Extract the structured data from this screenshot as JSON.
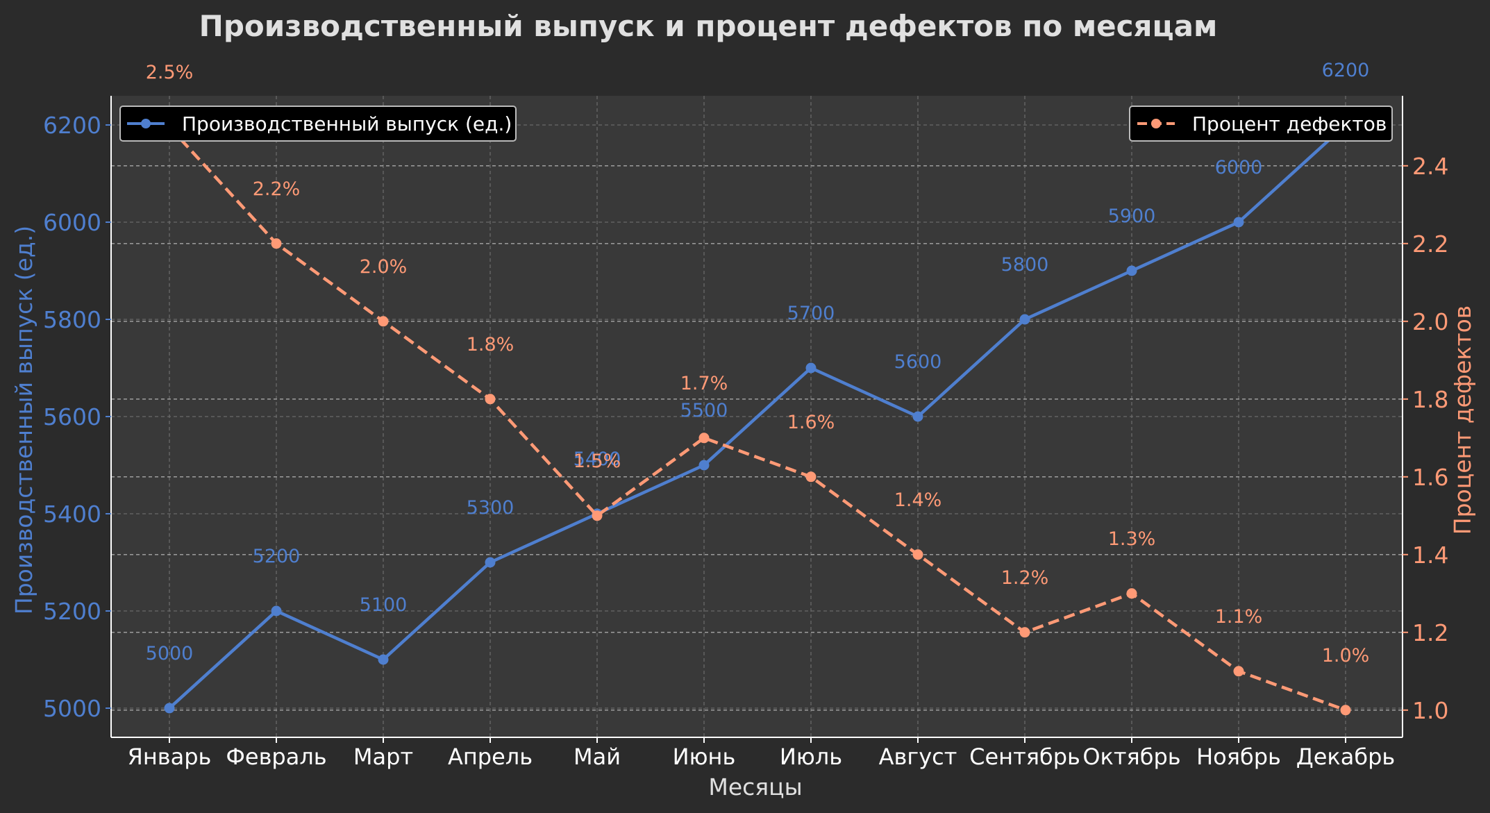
{
  "chart_data": {
    "type": "line",
    "title": "Производственный выпуск и процент дефектов по месяцам",
    "xlabel": "Месяцы",
    "categories": [
      "Январь",
      "Февраль",
      "Март",
      "Апрель",
      "Май",
      "Июнь",
      "Июль",
      "Август",
      "Сентябрь",
      "Октябрь",
      "Ноябрь",
      "Декабрь"
    ],
    "y_left": {
      "label": "Производственный выпуск (ед.)",
      "ylim": [
        4940,
        6260
      ],
      "ticks": [
        5000,
        5200,
        5400,
        5600,
        5800,
        6000,
        6200
      ]
    },
    "y_right": {
      "label": "Процент дефектов",
      "ylim": [
        0.93,
        2.58
      ],
      "ticks": [
        1.0,
        1.2,
        1.4,
        1.6,
        1.8,
        2.0,
        2.2,
        2.4
      ]
    },
    "grid": true,
    "series": [
      {
        "name": "Производственный выпуск (ед.)",
        "axis": "left",
        "style": "solid",
        "color": "#4f7fcf",
        "values": [
          5000,
          5200,
          5100,
          5300,
          5400,
          5500,
          5700,
          5600,
          5800,
          5900,
          6000,
          6200
        ],
        "labels": [
          "5000",
          "5200",
          "5100",
          "5300",
          "5400",
          "5500",
          "5700",
          "5600",
          "5800",
          "5900",
          "6000",
          "6200"
        ]
      },
      {
        "name": "Процент дефектов",
        "axis": "right",
        "style": "dashed",
        "color": "#ff9a76",
        "values": [
          2.5,
          2.2,
          2.0,
          1.8,
          1.5,
          1.7,
          1.6,
          1.4,
          1.2,
          1.3,
          1.1,
          1.0
        ],
        "labels": [
          "2.5%",
          "2.2%",
          "2.0%",
          "1.8%",
          "1.5%",
          "1.7%",
          "1.6%",
          "1.4%",
          "1.2%",
          "1.3%",
          "1.1%",
          "1.0%"
        ]
      }
    ],
    "legend": [
      {
        "text": "Производственный выпуск (ед.)",
        "placement": "top-left"
      },
      {
        "text": "Процент дефектов",
        "placement": "top-right"
      }
    ]
  }
}
